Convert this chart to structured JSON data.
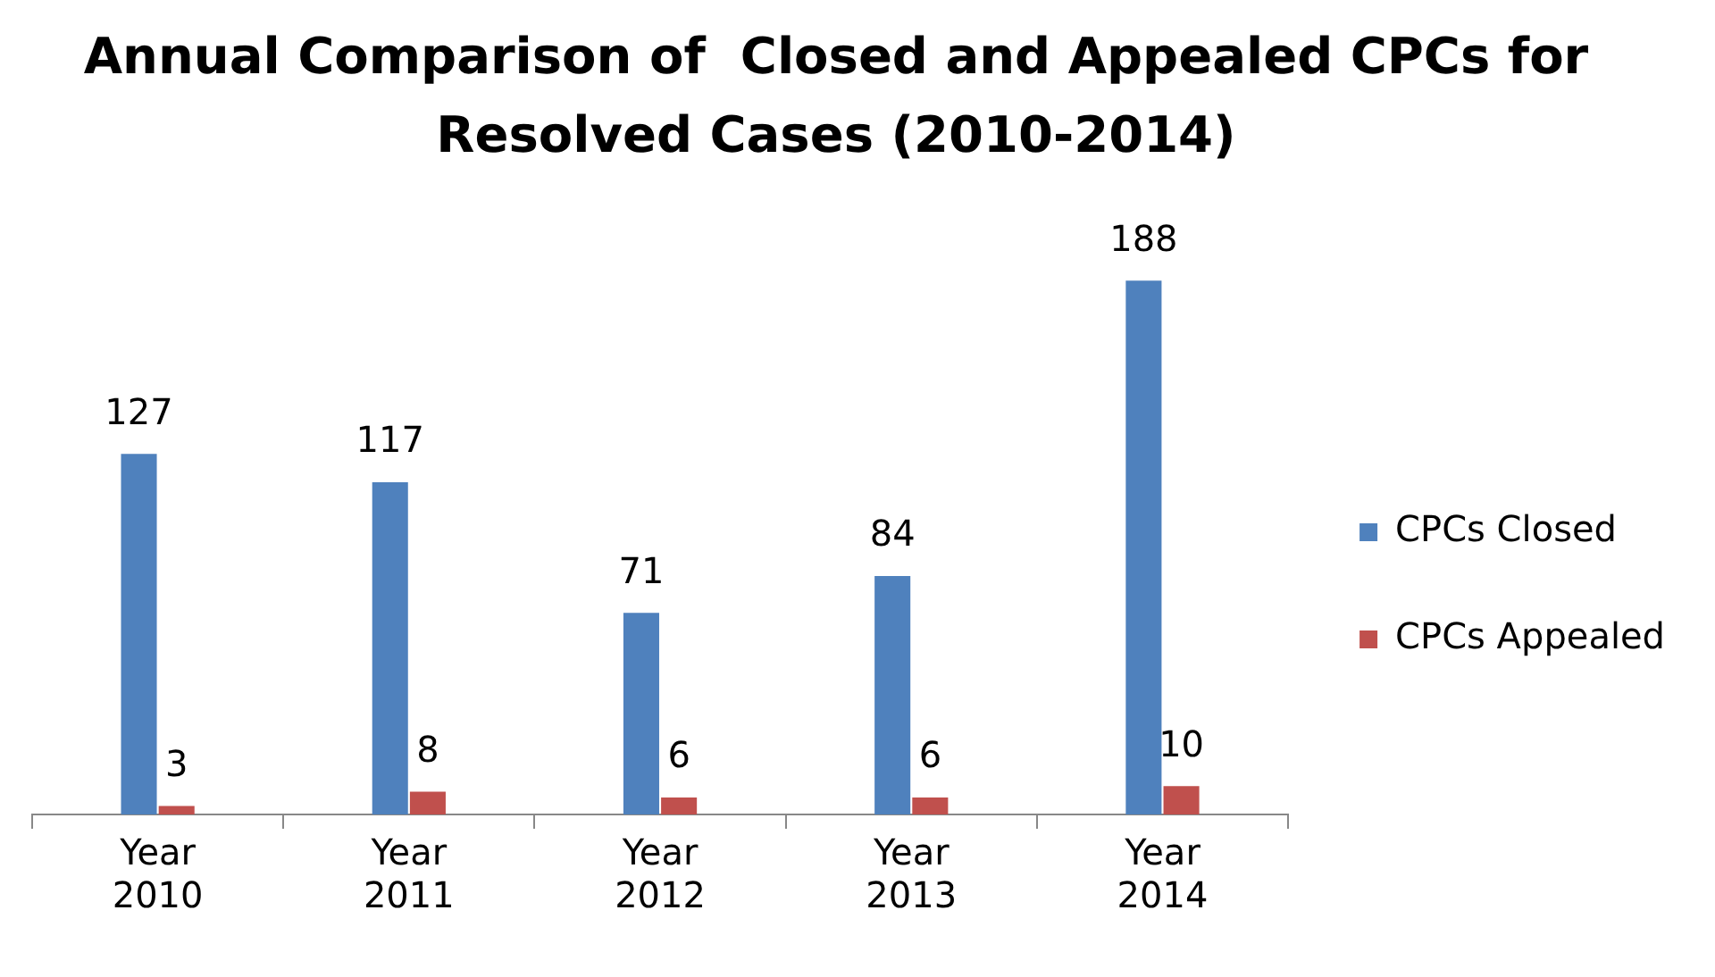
{
  "chart_data": {
    "type": "bar",
    "title": "Annual Comparison of  Closed and Appealed CPCs for Resolved Cases (2010-2014)",
    "categories": [
      "Year 2010",
      "Year 2011",
      "Year 2012",
      "Year 2013",
      "Year 2014"
    ],
    "series": [
      {
        "name": "CPCs Closed",
        "color": "#4f81bd",
        "values": [
          127,
          117,
          71,
          84,
          188
        ]
      },
      {
        "name": "CPCs Appealed",
        "color": "#c0504d",
        "values": [
          3,
          8,
          6,
          6,
          10
        ]
      }
    ],
    "data_labels": true,
    "legend": "right",
    "grid": false
  }
}
